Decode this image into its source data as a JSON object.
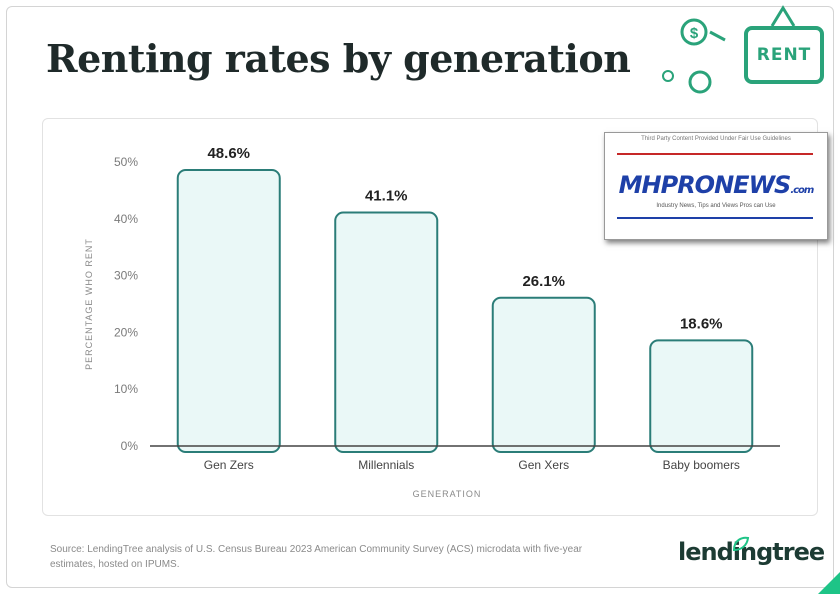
{
  "title": "Renting rates by generation",
  "rent_sign": "RENT",
  "watermark": {
    "top_text": "Third Party Content Provided Under Fair Use Guidelines",
    "logo_text": "MHPRONEWS",
    "logo_suffix": ".com",
    "tagline": "Industry News, Tips and Views Pros can Use"
  },
  "source_note": "Source: LendingTree analysis of U.S. Census Bureau 2023 American Community Survey (ACS) microdata with five-year estimates, hosted on IPUMS.",
  "brand": "lendingtree",
  "colors": {
    "bar_fill": "#eaf8f7",
    "bar_stroke": "#2b7d78",
    "accent": "#1ec487",
    "sign": "#2aa37a"
  },
  "chart_data": {
    "type": "bar",
    "categories": [
      "Gen Zers",
      "Millennials",
      "Gen Xers",
      "Baby boomers"
    ],
    "values": [
      48.6,
      41.1,
      26.1,
      18.6
    ],
    "value_labels": [
      "48.6%",
      "41.1%",
      "26.1%",
      "18.6%"
    ],
    "xlabel": "GENERATION",
    "ylabel": "PERCENTAGE WHO RENT",
    "ylim": [
      0,
      50
    ],
    "yticks": [
      0,
      10,
      20,
      30,
      40,
      50
    ],
    "ytick_labels": [
      "0%",
      "10%",
      "20%",
      "30%",
      "40%",
      "50%"
    ],
    "grid": false
  }
}
